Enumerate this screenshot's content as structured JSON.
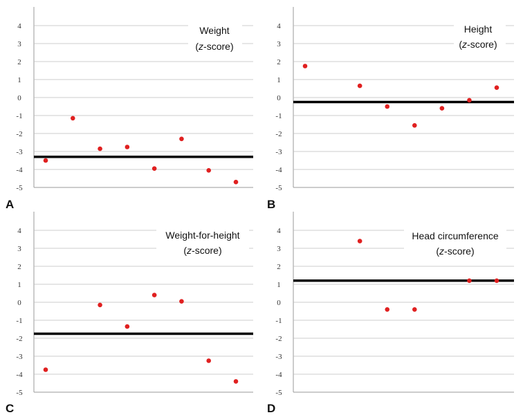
{
  "colors": {
    "point": "#e02020",
    "reference_line": "#000000",
    "grid": "#bdbdbd",
    "axis": "#9a9a9a"
  },
  "chart_data": [
    {
      "type": "scatter",
      "panel": "A",
      "title_main": "Weight",
      "title_pre": "(",
      "title_italic": "z",
      "title_post": "-score)",
      "ylim": [
        -5,
        5
      ],
      "yticks": [
        "4",
        "3",
        "2",
        "1",
        "0",
        "-1",
        "-2",
        "-3",
        "-4",
        "-5"
      ],
      "grid": true,
      "x": [
        1,
        2,
        3,
        4,
        5,
        6,
        7,
        8
      ],
      "y": [
        -3.5,
        -1.15,
        -2.85,
        -2.75,
        -3.95,
        -2.3,
        -4.05,
        -4.7
      ],
      "reference_line": -3.3
    },
    {
      "type": "scatter",
      "panel": "B",
      "title_main": "Height",
      "title_pre": "(",
      "title_italic": "z",
      "title_post": "-score)",
      "ylim": [
        -5,
        5
      ],
      "yticks": [
        "4",
        "3",
        "2",
        "1",
        "0",
        "-1",
        "-2",
        "-3",
        "-4",
        "-5"
      ],
      "grid": true,
      "x": [
        1,
        3,
        4,
        5,
        6,
        7,
        8
      ],
      "y": [
        1.75,
        0.65,
        -0.5,
        -1.55,
        -0.6,
        -0.15,
        0.55
      ],
      "reference_line": -0.25
    },
    {
      "type": "scatter",
      "panel": "C",
      "title_main": "Weight-for-height",
      "title_pre": "(",
      "title_italic": "z",
      "title_post": "-score)",
      "ylim": [
        -5,
        5
      ],
      "yticks": [
        "4",
        "3",
        "2",
        "1",
        "0",
        "-1",
        "-2",
        "-3",
        "-4",
        "-5"
      ],
      "grid": true,
      "x": [
        1,
        3,
        4,
        5,
        6,
        7,
        8
      ],
      "y": [
        -3.75,
        -0.15,
        -1.35,
        0.4,
        0.05,
        -3.25,
        -4.4
      ],
      "reference_line": -1.75
    },
    {
      "type": "scatter",
      "panel": "D",
      "title_main": "Head circumference",
      "title_pre": "(",
      "title_italic": "z",
      "title_post": "-score)",
      "ylim": [
        -5,
        5
      ],
      "yticks": [
        "4",
        "3",
        "2",
        "1",
        "0",
        "-1",
        "-2",
        "-3",
        "-4",
        "-5"
      ],
      "grid": true,
      "x": [
        3,
        4,
        5,
        7,
        8
      ],
      "y": [
        3.4,
        -0.4,
        -0.4,
        1.2,
        1.2
      ],
      "reference_line": 1.2
    }
  ]
}
